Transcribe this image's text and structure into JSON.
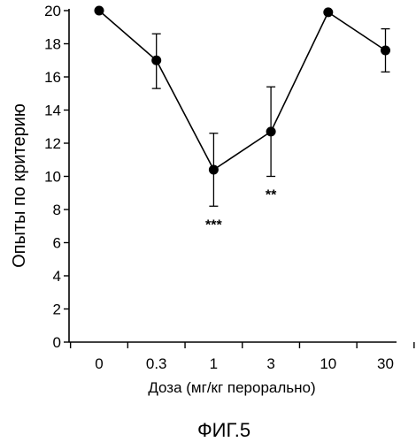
{
  "chart_data": {
    "type": "line",
    "xlabel": "Доза (мг/кг перорально)",
    "ylabel": "Опыты по критерию",
    "categories": [
      "0",
      "0.3",
      "1",
      "3",
      "10",
      "30"
    ],
    "series": [
      {
        "values": [
          20,
          17,
          10.4,
          12.7,
          19.9,
          17.6
        ],
        "error_low": [
          20,
          15.3,
          8.2,
          10.0,
          19.9,
          16.3
        ],
        "error_high": [
          20,
          18.6,
          12.6,
          15.4,
          19.9,
          18.9
        ]
      }
    ],
    "annotations": [
      "",
      "",
      "***",
      "**",
      "",
      ""
    ],
    "ylim": [
      0,
      20
    ],
    "yticks": [
      0,
      2,
      4,
      6,
      8,
      10,
      12,
      14,
      16,
      18,
      20
    ],
    "grid": false,
    "legend": "none"
  },
  "figure_label": "ФИГ.5"
}
